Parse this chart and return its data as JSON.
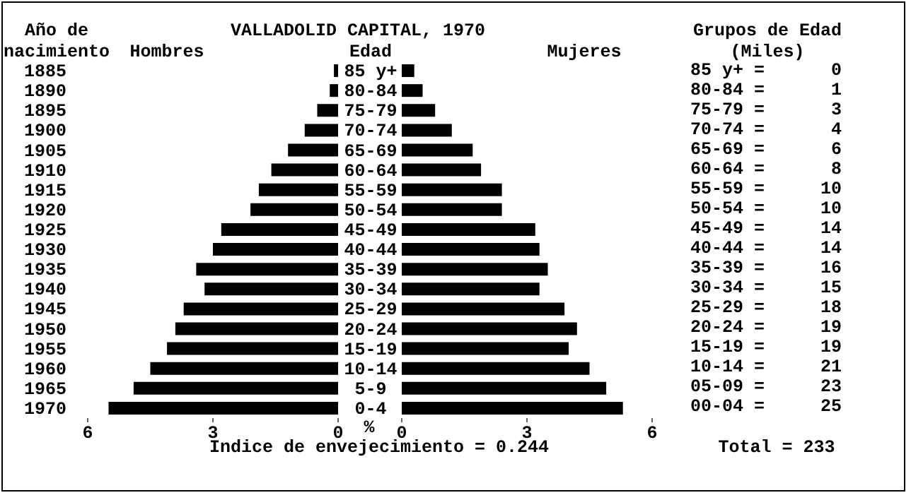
{
  "chart_data": [
    {
      "type": "bar",
      "orientation": "horizontal",
      "title": "VALLADOLID CAPITAL, 1970",
      "ylabel": "Año de nacimiento",
      "xlabel": "%",
      "categories": [
        "1885",
        "1890",
        "1895",
        "1900",
        "1905",
        "1910",
        "1915",
        "1920",
        "1925",
        "1930",
        "1935",
        "1940",
        "1945",
        "1950",
        "1955",
        "1960",
        "1965",
        "1970"
      ],
      "series": [
        {
          "name": "Hombres",
          "color": "#000000",
          "values": [
            0.1,
            0.2,
            0.5,
            0.8,
            1.2,
            1.6,
            1.9,
            2.1,
            2.8,
            3.0,
            3.4,
            3.2,
            3.7,
            3.9,
            4.1,
            4.5,
            4.9,
            5.5
          ]
        }
      ],
      "xlim": [
        6,
        0
      ],
      "xticks": [
        6,
        3,
        0
      ],
      "grid": false,
      "legend": false
    },
    {
      "type": "bar",
      "orientation": "horizontal",
      "ylabel": "Edad",
      "categories": [
        "85 y+",
        "80-84",
        "75-79",
        "70-74",
        "65-69",
        "60-64",
        "55-59",
        "50-54",
        "45-49",
        "40-44",
        "35-39",
        "30-34",
        "25-29",
        "20-24",
        "15-19",
        "10-14",
        "5-9",
        "0-4"
      ],
      "series": [
        {
          "name": "Mujeres",
          "color": "#000000",
          "values": [
            0.3,
            0.5,
            0.8,
            1.2,
            1.7,
            1.9,
            2.4,
            2.4,
            3.2,
            3.3,
            3.5,
            3.3,
            3.9,
            4.2,
            4.0,
            4.5,
            4.9,
            5.3
          ]
        }
      ],
      "xlim": [
        0,
        6
      ],
      "xticks": [
        0,
        3,
        6
      ],
      "grid": false,
      "legend": false,
      "annotations": [
        "Indice de envejecimiento = 0.244"
      ]
    },
    {
      "type": "other",
      "title": "Grupos de Edad (Miles)",
      "categories": [
        "85 y+ =",
        "80-84 =",
        "75-79 =",
        "70-74 =",
        "65-69 =",
        "60-64 =",
        "55-59 =",
        "50-54 =",
        "45-49 =",
        "40-44 =",
        "35-39 =",
        "30-34 =",
        "25-29 =",
        "20-24 =",
        "15-19 =",
        "10-14 =",
        "05-09 =",
        "00-04 ="
      ],
      "values": [
        0,
        1,
        3,
        4,
        6,
        8,
        10,
        10,
        14,
        14,
        16,
        15,
        18,
        19,
        19,
        21,
        23,
        25
      ],
      "data_labels": true,
      "annotations": [
        "Total = 233"
      ]
    }
  ]
}
